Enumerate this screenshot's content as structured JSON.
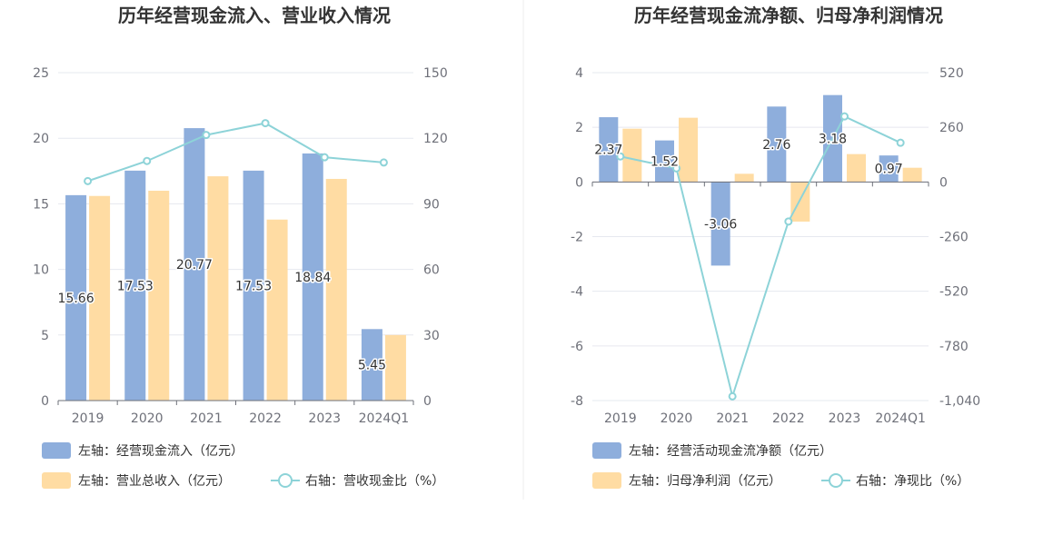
{
  "colors": {
    "bar_primary": "#8eaedc",
    "bar_secondary": "#ffdca3",
    "line": "#8dd3d8",
    "grid": "#e6e8ef",
    "axis": "#6e7079",
    "divider": "#eeeeee"
  },
  "chart_data": [
    {
      "type": "bar",
      "title": "历年经营现金流入、营业收入情况",
      "categories": [
        "2019",
        "2020",
        "2021",
        "2022",
        "2023",
        "2024Q1"
      ],
      "left_axis": {
        "ylim": [
          0,
          25
        ],
        "ticks": [
          "0",
          "5",
          "10",
          "15",
          "20",
          "25"
        ]
      },
      "right_axis": {
        "ylim": [
          0,
          150
        ],
        "ticks": [
          "0",
          "30",
          "60",
          "90",
          "120",
          "150"
        ]
      },
      "grid": true,
      "series": [
        {
          "name": "左轴：经营现金流入（亿元）",
          "kind": "bar",
          "axis": "left",
          "values": [
            15.66,
            17.53,
            20.77,
            17.53,
            18.84,
            5.45
          ],
          "labels": [
            "15.66",
            "17.53",
            "20.77",
            "17.53",
            "18.84",
            "5.45"
          ]
        },
        {
          "name": "左轴：营业总收入（亿元）",
          "kind": "bar",
          "axis": "left",
          "values": [
            15.6,
            16.0,
            17.1,
            13.8,
            16.9,
            5.0
          ]
        },
        {
          "name": "右轴：营收现金比（%）",
          "kind": "line",
          "axis": "right",
          "values": [
            100.4,
            109.6,
            121.5,
            126.9,
            111.3,
            108.9
          ]
        }
      ]
    },
    {
      "type": "bar",
      "title": "历年经营现金流净额、归母净利润情况",
      "categories": [
        "2019",
        "2020",
        "2021",
        "2022",
        "2023",
        "2024Q1"
      ],
      "left_axis": {
        "ylim": [
          -8,
          4
        ],
        "ticks": [
          "-8",
          "-6",
          "-4",
          "-2",
          "0",
          "2",
          "4"
        ]
      },
      "right_axis": {
        "ylim": [
          -1040,
          520
        ],
        "ticks": [
          "-1,040",
          "-780",
          "-520",
          "-260",
          "0",
          "260",
          "520"
        ]
      },
      "grid": true,
      "series": [
        {
          "name": "左轴：经营活动现金流净额（亿元）",
          "kind": "bar",
          "axis": "left",
          "values": [
            2.37,
            1.52,
            -3.06,
            2.76,
            3.18,
            0.97
          ],
          "labels": [
            "2.37",
            "1.52",
            "-3.06",
            "2.76",
            "3.18",
            "0.97"
          ]
        },
        {
          "name": "左轴：归母净利润（亿元）",
          "kind": "bar",
          "axis": "left",
          "values": [
            1.95,
            2.35,
            0.3,
            -1.45,
            1.02,
            0.52
          ]
        },
        {
          "name": "右轴：净现比（%）",
          "kind": "line",
          "axis": "right",
          "values": [
            121.5,
            64.7,
            -1020,
            -188,
            311.8,
            186.5
          ]
        }
      ]
    }
  ]
}
